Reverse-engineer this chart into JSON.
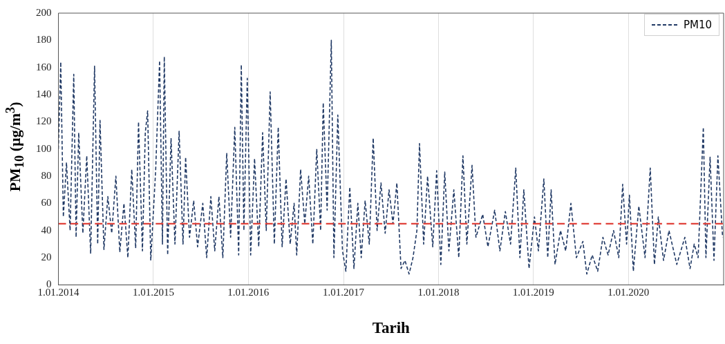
{
  "chart_data": {
    "type": "line",
    "xlabel": "Tarih",
    "ylabel": "PM$_{10}$ (µg/m$^{3}$)",
    "xlim": [
      "2014-01-01",
      "2021-01-01"
    ],
    "xticks": [
      {
        "value": "2014-01-01",
        "label": "1.01.2014"
      },
      {
        "value": "2015-01-01",
        "label": "1.01.2015"
      },
      {
        "value": "2016-01-01",
        "label": "1.01.2016"
      },
      {
        "value": "2017-01-01",
        "label": "1.01.2017"
      },
      {
        "value": "2018-01-01",
        "label": "1.01.2018"
      },
      {
        "value": "2019-01-01",
        "label": "1.01.2019"
      },
      {
        "value": "2020-01-01",
        "label": "1.01.2020"
      }
    ],
    "ylim": [
      0,
      200
    ],
    "yticks": [
      0,
      20,
      40,
      60,
      80,
      100,
      120,
      140,
      160,
      180,
      200
    ],
    "grid": "x",
    "legend": "top right",
    "line_style": "dashed",
    "x": [
      "2014-01-01",
      "2014-01-10",
      "2014-01-20",
      "2014-02-01",
      "2014-02-15",
      "2014-03-01",
      "2014-03-10",
      "2014-03-20",
      "2014-04-05",
      "2014-04-20",
      "2014-05-05",
      "2014-05-20",
      "2014-06-01",
      "2014-06-10",
      "2014-06-25",
      "2014-07-10",
      "2014-07-25",
      "2014-08-10",
      "2014-08-25",
      "2014-09-10",
      "2014-09-25",
      "2014-10-10",
      "2014-10-25",
      "2014-11-05",
      "2014-11-20",
      "2014-12-01",
      "2014-12-10",
      "2014-12-22",
      "2015-01-10",
      "2015-01-25",
      "2015-02-05",
      "2015-02-12",
      "2015-02-25",
      "2015-03-10",
      "2015-03-25",
      "2015-04-10",
      "2015-04-25",
      "2015-05-05",
      "2015-05-20",
      "2015-06-05",
      "2015-06-20",
      "2015-07-10",
      "2015-07-25",
      "2015-08-10",
      "2015-08-25",
      "2015-09-10",
      "2015-09-25",
      "2015-10-10",
      "2015-10-25",
      "2015-11-10",
      "2015-11-25",
      "2015-12-05",
      "2015-12-15",
      "2015-12-28",
      "2016-01-10",
      "2016-01-25",
      "2016-02-10",
      "2016-02-25",
      "2016-03-10",
      "2016-03-25",
      "2016-04-10",
      "2016-04-25",
      "2016-05-10",
      "2016-05-25",
      "2016-06-10",
      "2016-06-25",
      "2016-07-05",
      "2016-07-20",
      "2016-08-05",
      "2016-08-20",
      "2016-09-05",
      "2016-09-20",
      "2016-10-05",
      "2016-10-15",
      "2016-10-30",
      "2016-11-15",
      "2016-11-25",
      "2016-12-10",
      "2016-12-28",
      "2017-01-10",
      "2017-01-25",
      "2017-02-10",
      "2017-02-25",
      "2017-03-10",
      "2017-03-25",
      "2017-04-10",
      "2017-04-25",
      "2017-05-10",
      "2017-05-25",
      "2017-06-10",
      "2017-06-25",
      "2017-07-10",
      "2017-07-25",
      "2017-08-10",
      "2017-08-25",
      "2017-09-10",
      "2017-09-25",
      "2017-10-10",
      "2017-10-20",
      "2017-11-05",
      "2017-11-20",
      "2017-12-10",
      "2017-12-25",
      "2018-01-10",
      "2018-01-25",
      "2018-02-10",
      "2018-03-01",
      "2018-03-20",
      "2018-04-05",
      "2018-04-20",
      "2018-05-10",
      "2018-05-25",
      "2018-06-20",
      "2018-07-10",
      "2018-08-05",
      "2018-08-25",
      "2018-09-15",
      "2018-10-05",
      "2018-10-25",
      "2018-11-10",
      "2018-11-25",
      "2018-12-15",
      "2019-01-05",
      "2019-01-20",
      "2019-02-10",
      "2019-02-25",
      "2019-03-10",
      "2019-03-25",
      "2019-04-15",
      "2019-05-05",
      "2019-05-25",
      "2019-06-15",
      "2019-07-10",
      "2019-07-25",
      "2019-08-15",
      "2019-09-05",
      "2019-09-25",
      "2019-10-15",
      "2019-11-05",
      "2019-11-25",
      "2019-12-10",
      "2019-12-25",
      "2020-01-05",
      "2020-01-20",
      "2020-02-10",
      "2020-03-05",
      "2020-03-25",
      "2020-04-10",
      "2020-04-25",
      "2020-05-15",
      "2020-06-05",
      "2020-07-05",
      "2020-08-05",
      "2020-08-25",
      "2020-09-10",
      "2020-09-25",
      "2020-10-15",
      "2020-10-25",
      "2020-11-10",
      "2020-11-25",
      "2020-12-10",
      "2020-12-28"
    ],
    "series": [
      {
        "name": "PM10",
        "color": "#1f3864",
        "values": [
          100,
          164,
          50,
          90,
          40,
          155,
          35,
          112,
          38,
          95,
          23,
          161,
          30,
          121,
          26,
          65,
          38,
          80,
          24,
          60,
          20,
          85,
          27,
          120,
          25,
          112,
          128,
          18,
          85,
          165,
          30,
          168,
          22,
          108,
          30,
          113,
          30,
          94,
          35,
          62,
          28,
          60,
          20,
          65,
          25,
          65,
          20,
          97,
          35,
          116,
          22,
          162,
          40,
          152,
          22,
          93,
          28,
          112,
          40,
          142,
          30,
          116,
          28,
          78,
          30,
          60,
          22,
          85,
          45,
          80,
          30,
          100,
          40,
          134,
          55,
          180,
          20,
          125,
          25,
          10,
          72,
          12,
          60,
          20,
          62,
          30,
          108,
          40,
          75,
          38,
          70,
          45,
          75,
          12,
          18,
          8,
          20,
          40,
          104,
          30,
          80,
          28,
          84,
          15,
          83,
          25,
          70,
          20,
          95,
          30,
          88,
          35,
          52,
          28,
          55,
          25,
          54,
          30,
          86,
          20,
          70,
          12,
          50,
          25,
          78,
          20,
          70,
          15,
          40,
          25,
          60,
          20,
          32,
          8,
          22,
          10,
          35,
          22,
          40,
          20,
          74,
          30,
          66,
          10,
          58,
          20,
          86,
          15,
          50,
          18,
          40,
          15,
          35,
          12,
          30,
          20,
          116,
          20,
          94,
          18,
          95,
          35
        ]
      }
    ],
    "ref_lines": [
      {
        "axis": "y",
        "value": 45,
        "color": "#e0413a",
        "line_style": "dashed"
      }
    ]
  }
}
